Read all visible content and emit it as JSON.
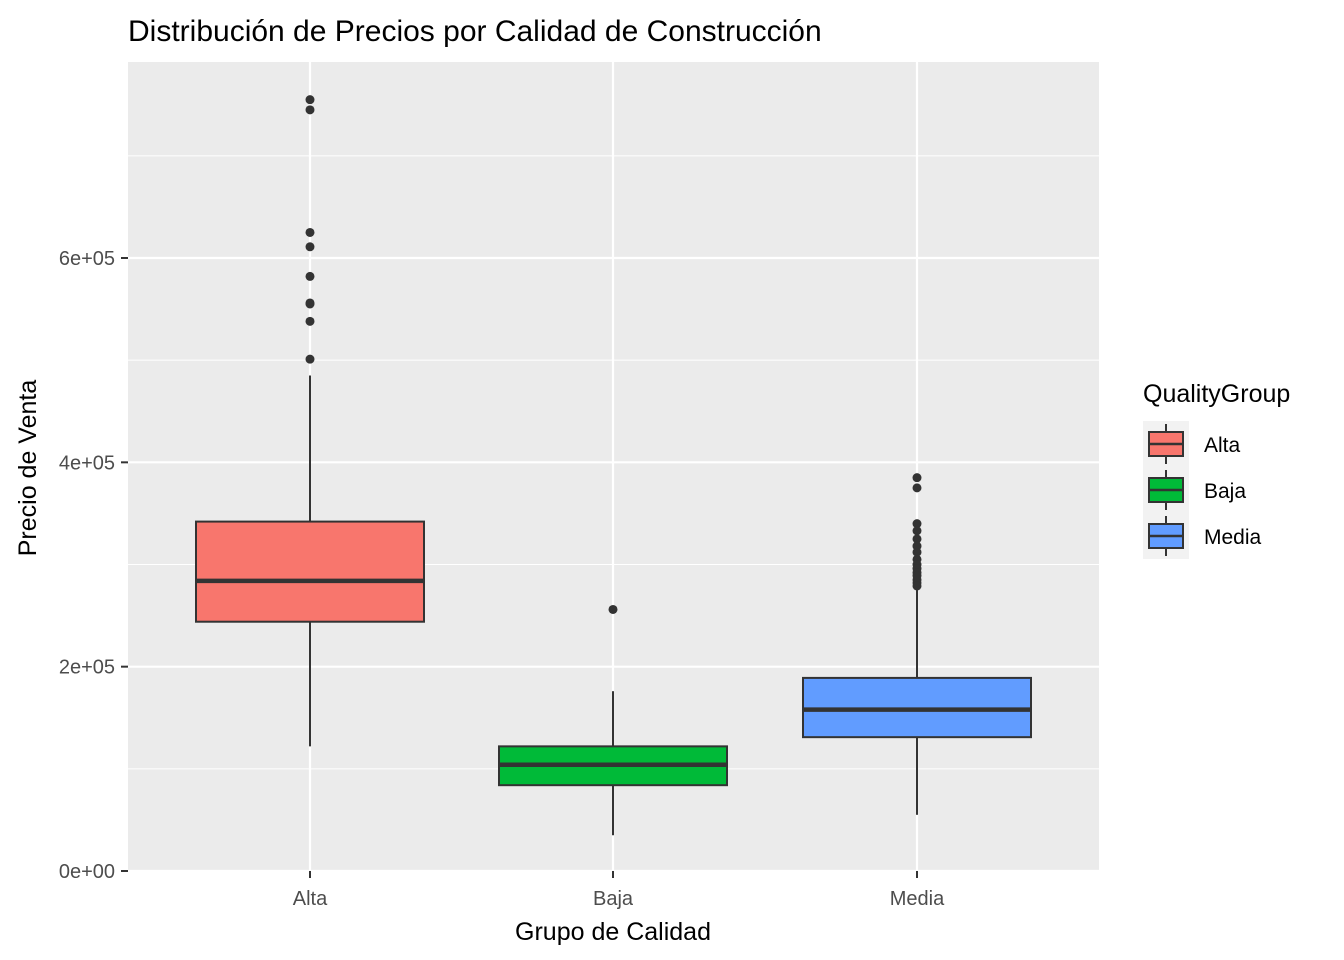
{
  "chart_data": {
    "type": "boxplot",
    "title": "Distribución de Precios por Calidad de Construcción",
    "xlabel": "Grupo de Calidad",
    "ylabel": "Precio de Venta",
    "ylim": [
      0,
      790000
    ],
    "y_ticks": [
      {
        "value": 0,
        "label": "0e+00"
      },
      {
        "value": 200000,
        "label": "2e+05"
      },
      {
        "value": 400000,
        "label": "4e+05"
      },
      {
        "value": 600000,
        "label": "6e+05"
      }
    ],
    "grid": true,
    "legend": {
      "title": "QualityGroup",
      "position": "right",
      "entries": [
        "Alta",
        "Baja",
        "Media"
      ]
    },
    "categories": [
      "Alta",
      "Baja",
      "Media"
    ],
    "boxes": [
      {
        "category": "Alta",
        "color": "#F8766D",
        "whisker_low": 122000,
        "q1": 244000,
        "median": 284000,
        "q3": 342000,
        "whisker_high": 485000,
        "outliers": [
          755000,
          745000,
          625000,
          611000,
          582000,
          556000,
          555000,
          538000,
          501000
        ]
      },
      {
        "category": "Baja",
        "color": "#00BA38",
        "whisker_low": 35000,
        "q1": 84000,
        "median": 104000,
        "q3": 122000,
        "whisker_high": 176000,
        "outliers": [
          256000
        ]
      },
      {
        "category": "Media",
        "color": "#619CFF",
        "whisker_low": 55000,
        "q1": 131000,
        "median": 158000,
        "q3": 189000,
        "whisker_high": 275000,
        "outliers": [
          385000,
          375000,
          340000,
          333000,
          325000,
          318000,
          312000,
          305000,
          300000,
          296000,
          292000,
          289000,
          285000,
          282000,
          279000
        ]
      }
    ]
  }
}
